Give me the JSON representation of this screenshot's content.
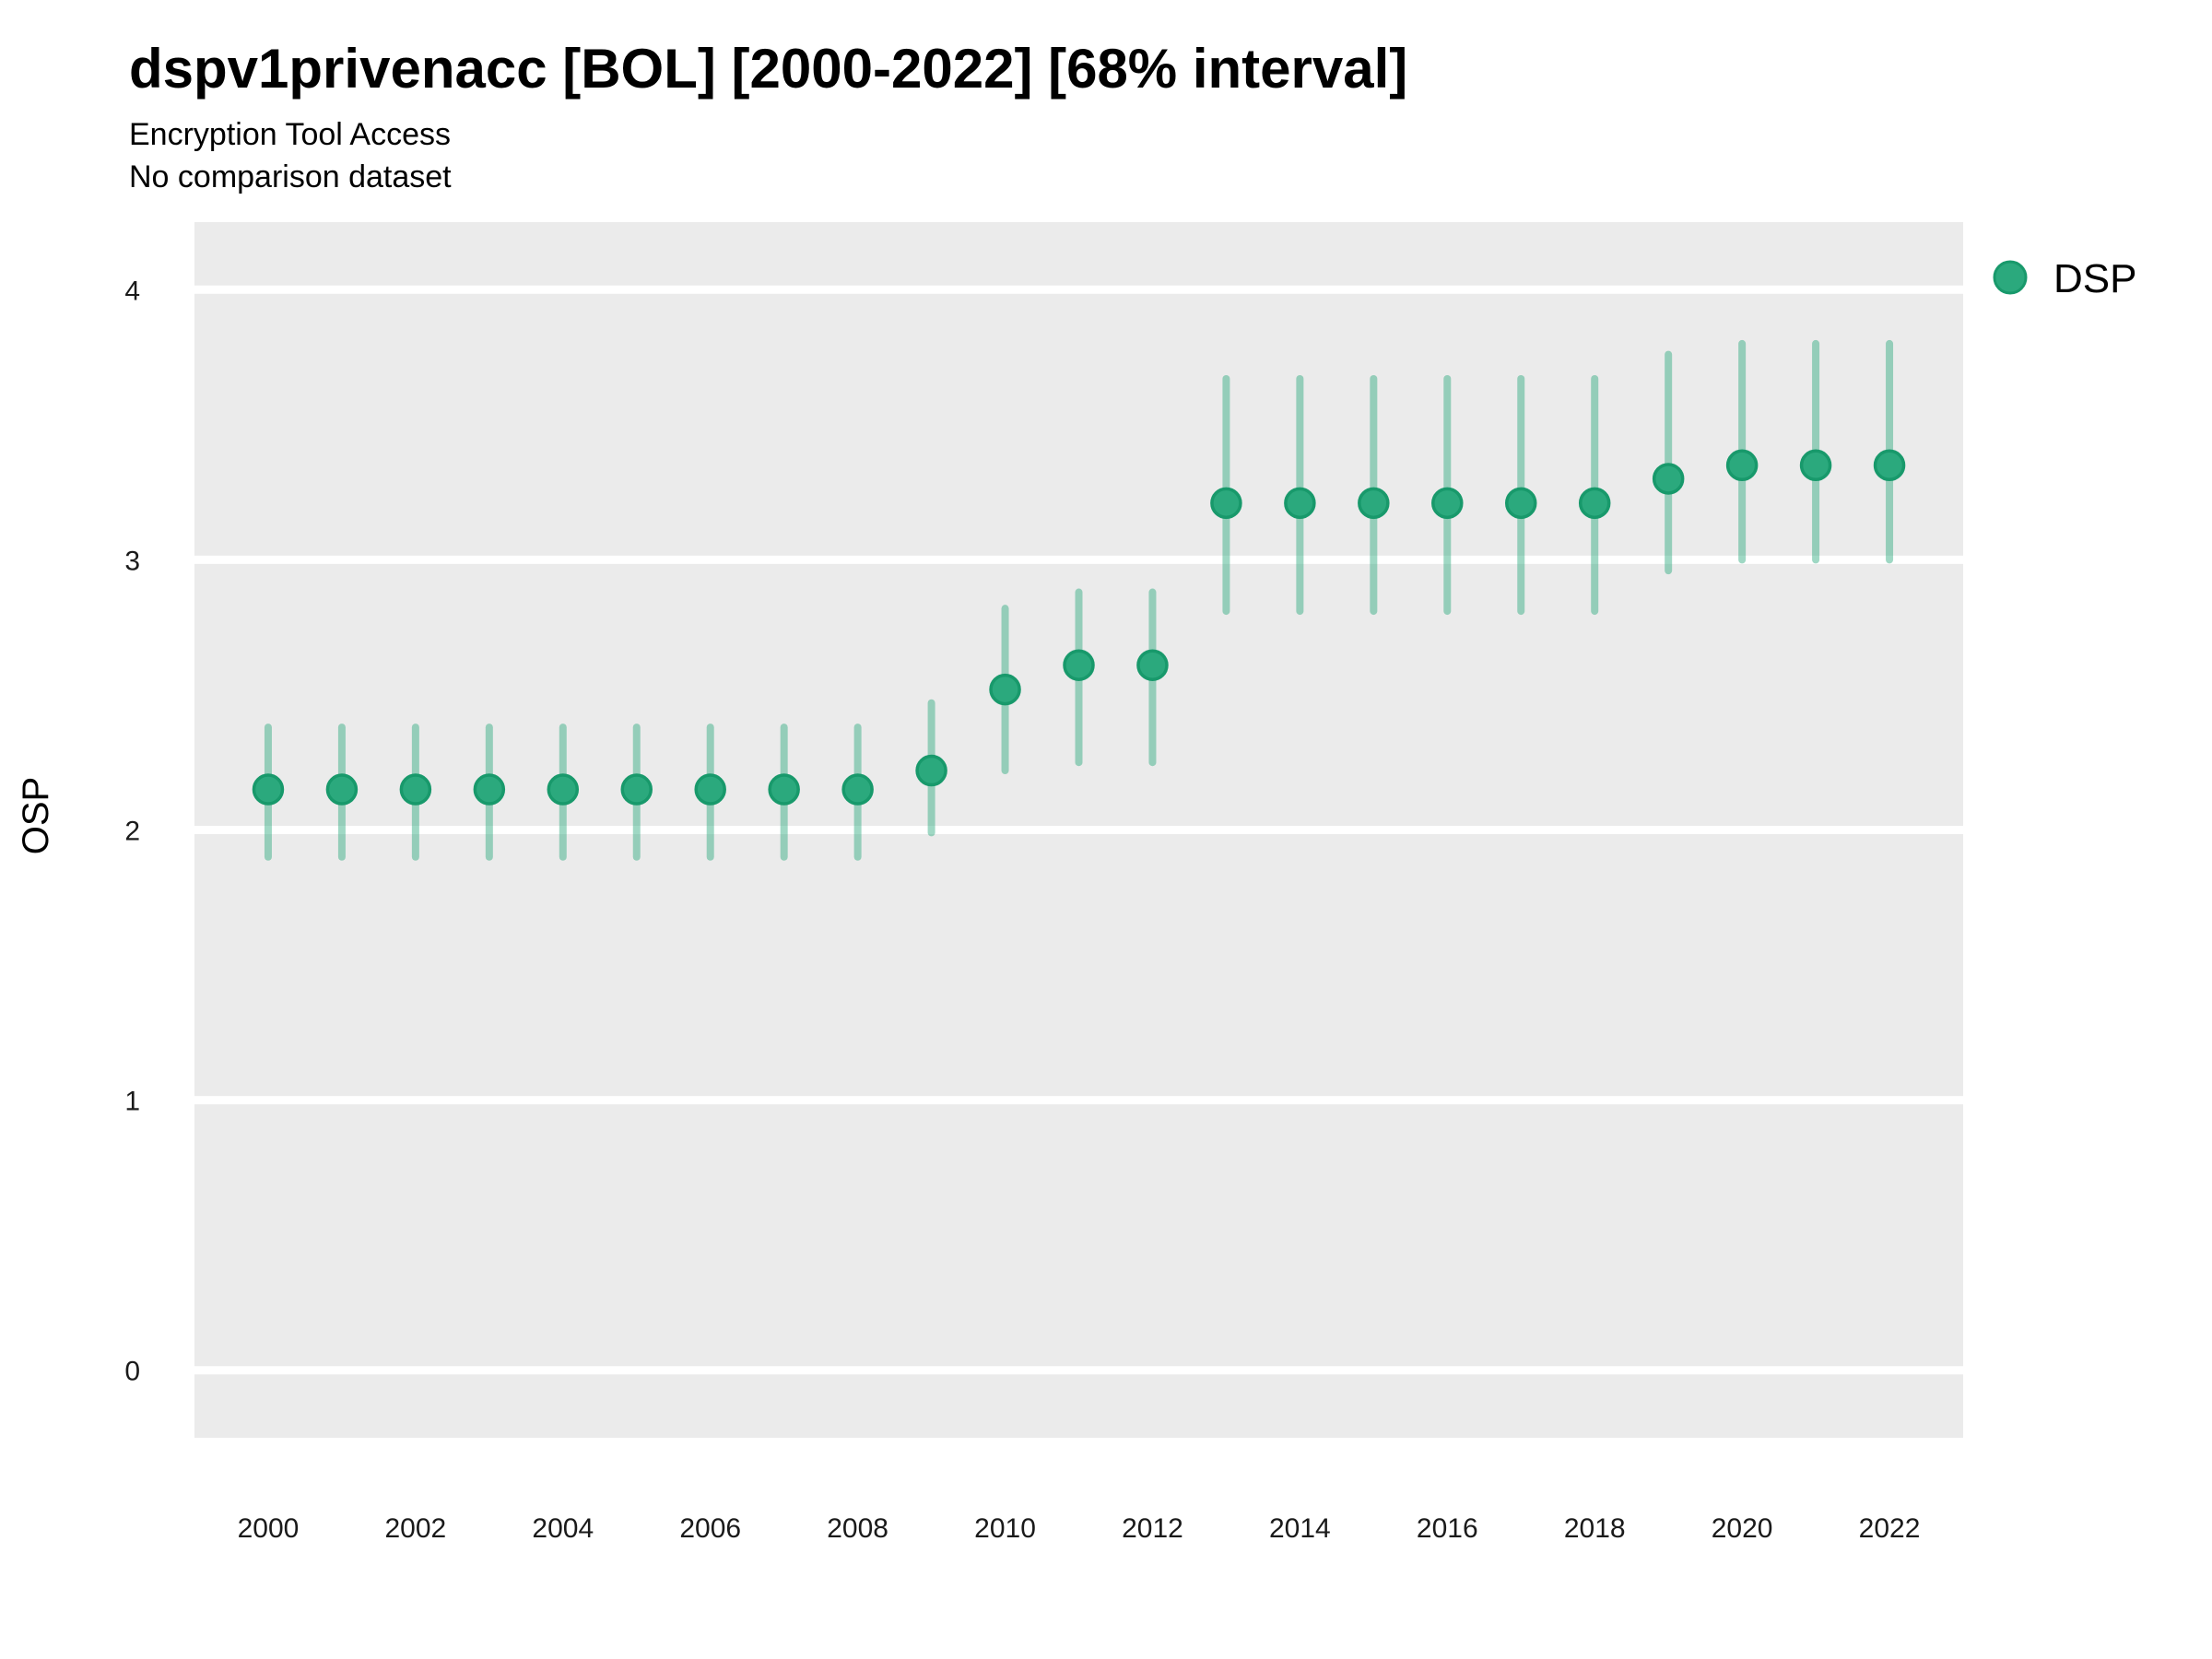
{
  "header": {
    "title": "dspv1privenacc [BOL] [2000-2022] [68% interval]",
    "subtitle": "Encryption Tool Access",
    "note": "No comparison dataset"
  },
  "legend": {
    "entries": [
      {
        "label": "DSP",
        "color": "#2BA97D"
      }
    ],
    "position": "right"
  },
  "chart_data": {
    "type": "scatter",
    "title": "dspv1privenacc [BOL] [2000-2022] [68% interval]",
    "subtitle": "Encryption Tool Access",
    "note": "No comparison dataset",
    "interval_level": "68%",
    "xlabel": "",
    "ylabel": "OSP",
    "xlim": [
      1999,
      2023
    ],
    "ylim": [
      -0.25,
      4.25
    ],
    "x_ticks": [
      2000,
      2002,
      2004,
      2006,
      2008,
      2010,
      2012,
      2014,
      2016,
      2018,
      2020,
      2022
    ],
    "y_ticks": [
      0,
      1,
      2,
      3,
      4
    ],
    "grid": "horizontal-major-white",
    "legend_position": "right",
    "series": [
      {
        "name": "DSP",
        "x": [
          2000,
          2001,
          2002,
          2003,
          2004,
          2005,
          2006,
          2007,
          2008,
          2009,
          2010,
          2011,
          2012,
          2013,
          2014,
          2015,
          2016,
          2017,
          2018,
          2019,
          2020,
          2021,
          2022
        ],
        "y": [
          2.15,
          2.15,
          2.15,
          2.15,
          2.15,
          2.15,
          2.15,
          2.15,
          2.15,
          2.22,
          2.52,
          2.61,
          2.61,
          3.21,
          3.21,
          3.21,
          3.21,
          3.21,
          3.21,
          3.3,
          3.35,
          3.35,
          3.35
        ],
        "y_low": [
          1.9,
          1.9,
          1.9,
          1.9,
          1.9,
          1.9,
          1.9,
          1.9,
          1.9,
          1.99,
          2.22,
          2.25,
          2.25,
          2.81,
          2.81,
          2.81,
          2.81,
          2.81,
          2.81,
          2.96,
          3.0,
          3.0,
          3.0
        ],
        "y_high": [
          2.38,
          2.38,
          2.38,
          2.38,
          2.38,
          2.38,
          2.38,
          2.38,
          2.38,
          2.47,
          2.82,
          2.88,
          2.88,
          3.67,
          3.67,
          3.67,
          3.67,
          3.67,
          3.67,
          3.76,
          3.8,
          3.8,
          3.8
        ]
      }
    ],
    "colors": {
      "point_fill": "#2BA97D",
      "point_stroke": "#18996B",
      "interval_stroke": "#2BA97D",
      "interval_opacity": 0.45,
      "panel_background": "#EBEBEB",
      "gridline": "#FFFFFF",
      "text": "#000000"
    }
  }
}
